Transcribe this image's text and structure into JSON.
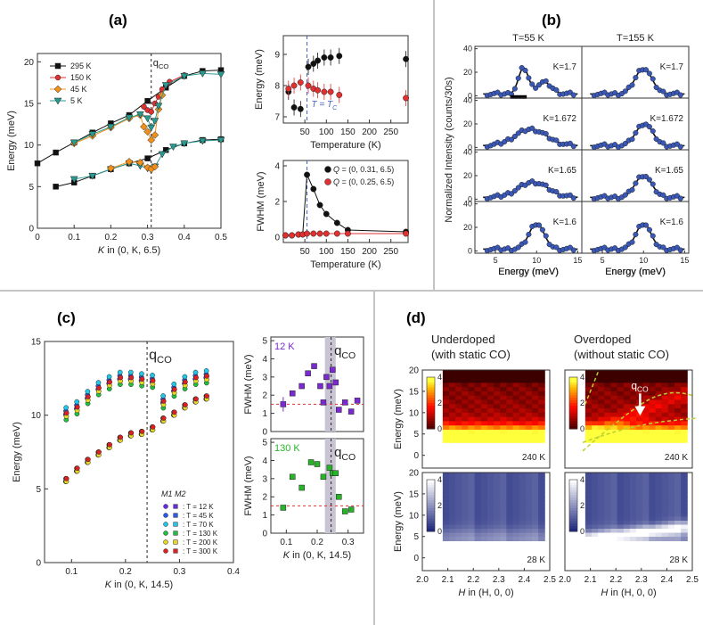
{
  "panels": {
    "a": {
      "label": "(a)"
    },
    "b": {
      "label": "(b)"
    },
    "c": {
      "label": "(c)"
    },
    "d": {
      "label": "(d)"
    }
  },
  "chart_data": [
    {
      "id": "a-left",
      "type": "line",
      "xlabel": "K in (0, K, 6.5)",
      "ylabel": "Energy (meV)",
      "xlim": [
        0,
        0.5
      ],
      "ylim": [
        0,
        21
      ],
      "xticks": [
        0.0,
        0.1,
        0.2,
        0.3,
        0.4,
        0.5
      ],
      "yticks": [
        0,
        5,
        10,
        15,
        20
      ],
      "annotation": "q",
      "annotation_sub": "CO",
      "marker_x": 0.31,
      "series": [
        {
          "name": "295 K",
          "color": "#111111",
          "marker": "square",
          "x": [
            0,
            0.05,
            0.1,
            0.15,
            0.2,
            0.25,
            0.3,
            0.35,
            0.4,
            0.45,
            0.5
          ],
          "y": [
            7.8,
            9.1,
            10.3,
            11.5,
            12.6,
            13.6,
            15.3,
            16.9,
            18.3,
            18.9,
            19.0
          ]
        },
        {
          "name": "295 K",
          "color": "#111111",
          "marker": "square",
          "x": [
            0.05,
            0.1,
            0.15,
            0.2,
            0.25,
            0.3,
            0.35,
            0.4,
            0.45,
            0.5
          ],
          "y": [
            5.0,
            5.5,
            6.3,
            7.1,
            7.8,
            8.4,
            9.4,
            10.2,
            10.6,
            10.7
          ]
        },
        {
          "name": "150 K",
          "color": "#e03030",
          "marker": "circle",
          "x": [
            0.29,
            0.3,
            0.31,
            0.32,
            0.33,
            0.34,
            0.36,
            0.4
          ],
          "y": [
            14.6,
            14.2,
            14.0,
            15.0,
            15.8,
            16.7,
            17.6,
            18.4
          ]
        },
        {
          "name": "45 K",
          "color": "#f0901a",
          "marker": "diamond",
          "x": [
            0.1,
            0.15,
            0.2,
            0.25,
            0.28,
            0.29,
            0.3,
            0.31,
            0.32,
            0.33,
            0.34
          ],
          "y": [
            10.2,
            11.1,
            12.1,
            13.2,
            13.6,
            12.2,
            11.6,
            10.6,
            11.2,
            14.3,
            16.0
          ]
        },
        {
          "name": "5 K",
          "color": "#2a9a90",
          "marker": "triangle-down",
          "x": [
            0.1,
            0.15,
            0.2,
            0.25,
            0.28,
            0.3,
            0.31,
            0.32,
            0.33,
            0.35,
            0.4,
            0.45,
            0.5
          ],
          "y": [
            10.3,
            11.3,
            12.2,
            13.3,
            13.7,
            13.2,
            12.1,
            12.9,
            14.7,
            17.2,
            18.3,
            18.6,
            18.5
          ]
        },
        {
          "name": "5 K",
          "color": "#2a9a90",
          "marker": "triangle-down",
          "x": [
            0.1,
            0.15,
            0.2,
            0.25,
            0.28,
            0.3,
            0.31,
            0.32,
            0.34,
            0.37,
            0.4,
            0.45,
            0.5
          ],
          "y": [
            5.9,
            6.3,
            7.1,
            7.8,
            7.5,
            7.2,
            7.0,
            7.4,
            8.9,
            9.8,
            10.2,
            10.5,
            10.6
          ]
        },
        {
          "name": "45 K",
          "color": "#f0901a",
          "marker": "diamond",
          "x": [
            0.2,
            0.25,
            0.28,
            0.3,
            0.31,
            0.32
          ],
          "y": [
            7.2,
            8.0,
            7.9,
            7.3,
            7.1,
            7.4
          ]
        }
      ],
      "legend": [
        "295 K",
        "150 K",
        "45 K",
        "5 K"
      ]
    },
    {
      "id": "a-right-top",
      "type": "scatter",
      "xlabel": "Temperature (K)",
      "ylabel": "Energy (meV)",
      "xlim": [
        0,
        290
      ],
      "ylim": [
        6.8,
        9.6
      ],
      "xticks": [
        50,
        100,
        150,
        200,
        250
      ],
      "yticks": [
        7,
        8,
        9
      ],
      "annotation": "T = T",
      "annotation_sub": "C",
      "marker_x": 55,
      "series": [
        {
          "color": "#111111",
          "x": [
            12,
            25,
            40,
            58,
            70,
            80,
            95,
            110,
            130,
            285
          ],
          "y": [
            7.8,
            7.3,
            7.25,
            8.6,
            8.7,
            8.8,
            8.9,
            8.9,
            8.95,
            8.85
          ]
        },
        {
          "color": "#e03030",
          "x": [
            12,
            25,
            40,
            58,
            70,
            80,
            95,
            110,
            130,
            285
          ],
          "y": [
            7.9,
            8.0,
            8.1,
            8.0,
            7.9,
            7.85,
            7.8,
            7.8,
            7.7,
            7.6
          ]
        }
      ]
    },
    {
      "id": "a-right-bottom",
      "type": "line",
      "xlabel": "Temperature (K)",
      "ylabel": "FWHM (meV)",
      "xlim": [
        0,
        290
      ],
      "ylim": [
        -0.3,
        4.3
      ],
      "xticks": [
        50,
        100,
        150,
        200,
        250
      ],
      "yticks": [
        0,
        2,
        4
      ],
      "marker_x": 55,
      "series": [
        {
          "name": "Q = (0, 0.31, 6.5)",
          "color": "#111111",
          "x": [
            5,
            20,
            35,
            45,
            55,
            70,
            85,
            100,
            125,
            150,
            285
          ],
          "y": [
            0.1,
            0.1,
            0.15,
            0.15,
            3.5,
            2.7,
            1.8,
            1.3,
            0.8,
            0.4,
            0.3
          ]
        },
        {
          "name": "Q = (0, 0.25, 6.5)",
          "color": "#e03030",
          "x": [
            5,
            20,
            35,
            45,
            55,
            70,
            85,
            100,
            125,
            150,
            285
          ],
          "y": [
            0.1,
            0.1,
            0.15,
            0.15,
            0.2,
            0.2,
            0.2,
            0.2,
            0.2,
            0.2,
            0.2
          ]
        }
      ]
    },
    {
      "id": "b",
      "type": "line",
      "xlabel": "Energy (meV)",
      "ylabel": "Normalized Intensity (counts/30s)",
      "xlim": [
        2.5,
        15.5
      ],
      "ylim": [
        -2,
        42
      ],
      "xticks": [
        5,
        10,
        15
      ],
      "yticks": [
        0,
        20,
        40
      ],
      "columns": [
        "T=55 K",
        "T=155 K"
      ],
      "rows": [
        "K=1.7",
        "K=1.672",
        "K=1.65",
        "K=1.6"
      ],
      "peaks": [
        [
          {
            "c": 8.4,
            "a": 22,
            "w": 0.6,
            "c2": 10.9,
            "a2": 10,
            "w2": 0.9
          },
          {
            "c": 10.0,
            "a": 22,
            "w": 1.0
          }
        ],
        [
          {
            "c": 9.3,
            "a": 14,
            "w": 1.9
          },
          {
            "c": 10.1,
            "a": 19,
            "w": 1.0
          }
        ],
        [
          {
            "c": 9.6,
            "a": 13,
            "w": 1.8
          },
          {
            "c": 10.0,
            "a": 19,
            "w": 1.0
          }
        ],
        [
          {
            "c": 10.0,
            "a": 22,
            "w": 0.9
          },
          {
            "c": 10.0,
            "a": 22,
            "w": 0.9
          }
        ]
      ]
    },
    {
      "id": "c-left",
      "type": "scatter",
      "xlabel": "K in (0, K, 14.5)",
      "ylabel": "Energy (meV)",
      "xlim": [
        0.05,
        0.4
      ],
      "ylim": [
        0,
        15
      ],
      "xticks": [
        0.1,
        0.2,
        0.3,
        0.4
      ],
      "yticks": [
        0,
        5,
        10,
        15
      ],
      "annotation": "q",
      "annotation_sub": "CO",
      "marker_x": 0.24,
      "legend_header": "M1 M2",
      "series": [
        {
          "name": "T = 12 K",
          "color": "#6a2ae0"
        },
        {
          "name": "T = 45 K",
          "color": "#2a5ae8"
        },
        {
          "name": "T = 70 K",
          "color": "#20c8e8"
        },
        {
          "name": "T = 130 K",
          "color": "#20c040"
        },
        {
          "name": "T = 200 K",
          "color": "#e8d820"
        },
        {
          "name": "T = 300 K",
          "color": "#e02020"
        }
      ]
    },
    {
      "id": "c-right-top",
      "type": "scatter",
      "label": "12 K",
      "ylabel": "FWHM (meV)",
      "xlim": [
        0.05,
        0.35
      ],
      "ylim": [
        0,
        5.2
      ],
      "yticks": [
        0,
        1,
        2,
        3,
        4,
        5
      ],
      "annotation": "q",
      "annotation_sub": "CO",
      "color": "#7a2ad0",
      "x": [
        0.09,
        0.12,
        0.15,
        0.17,
        0.19,
        0.21,
        0.22,
        0.23,
        0.24,
        0.25,
        0.26,
        0.27,
        0.29,
        0.31,
        0.33
      ],
      "y": [
        1.5,
        2.1,
        2.5,
        3.2,
        3.6,
        2.5,
        1.6,
        3.0,
        2.5,
        3.4,
        2.7,
        1.2,
        1.6,
        1.1,
        1.7
      ]
    },
    {
      "id": "c-right-bottom",
      "type": "scatter",
      "label": "130 K",
      "xlabel": "K in (0, K, 14.5)",
      "ylabel": "FWHM (meV)",
      "xlim": [
        0.05,
        0.35
      ],
      "ylim": [
        0,
        5.2
      ],
      "xticks": [
        0.1,
        0.2,
        0.3
      ],
      "yticks": [
        0,
        1,
        2,
        3,
        4,
        5
      ],
      "annotation": "q",
      "annotation_sub": "CO",
      "color": "#28b428",
      "x": [
        0.09,
        0.12,
        0.15,
        0.18,
        0.2,
        0.22,
        0.24,
        0.25,
        0.26,
        0.27,
        0.29,
        0.31
      ],
      "y": [
        1.4,
        3.1,
        2.5,
        3.9,
        3.8,
        3.1,
        3.6,
        3.3,
        3.3,
        2.0,
        1.2,
        1.3
      ]
    },
    {
      "id": "d",
      "type": "heatmap",
      "xlabel": "H in (H, 0, 0)",
      "ylabel": "Energy (meV)",
      "xlim": [
        2.0,
        2.5
      ],
      "ylim": [
        -3,
        20
      ],
      "xticks": [
        2.0,
        2.1,
        2.2,
        2.3,
        2.4,
        2.5
      ],
      "yticks": [
        0,
        5,
        10,
        15,
        20
      ],
      "colorbar_ticks": [
        0,
        2,
        4
      ],
      "columns": [
        {
          "title_line1": "Underdoped",
          "title_line2": "(with static CO)"
        },
        {
          "title_line1": "Overdoped",
          "title_line2": "(without static CO)",
          "annotation": "q",
          "annotation_sub": "CO"
        }
      ],
      "temperatures": [
        "240 K",
        "28 K"
      ]
    }
  ]
}
